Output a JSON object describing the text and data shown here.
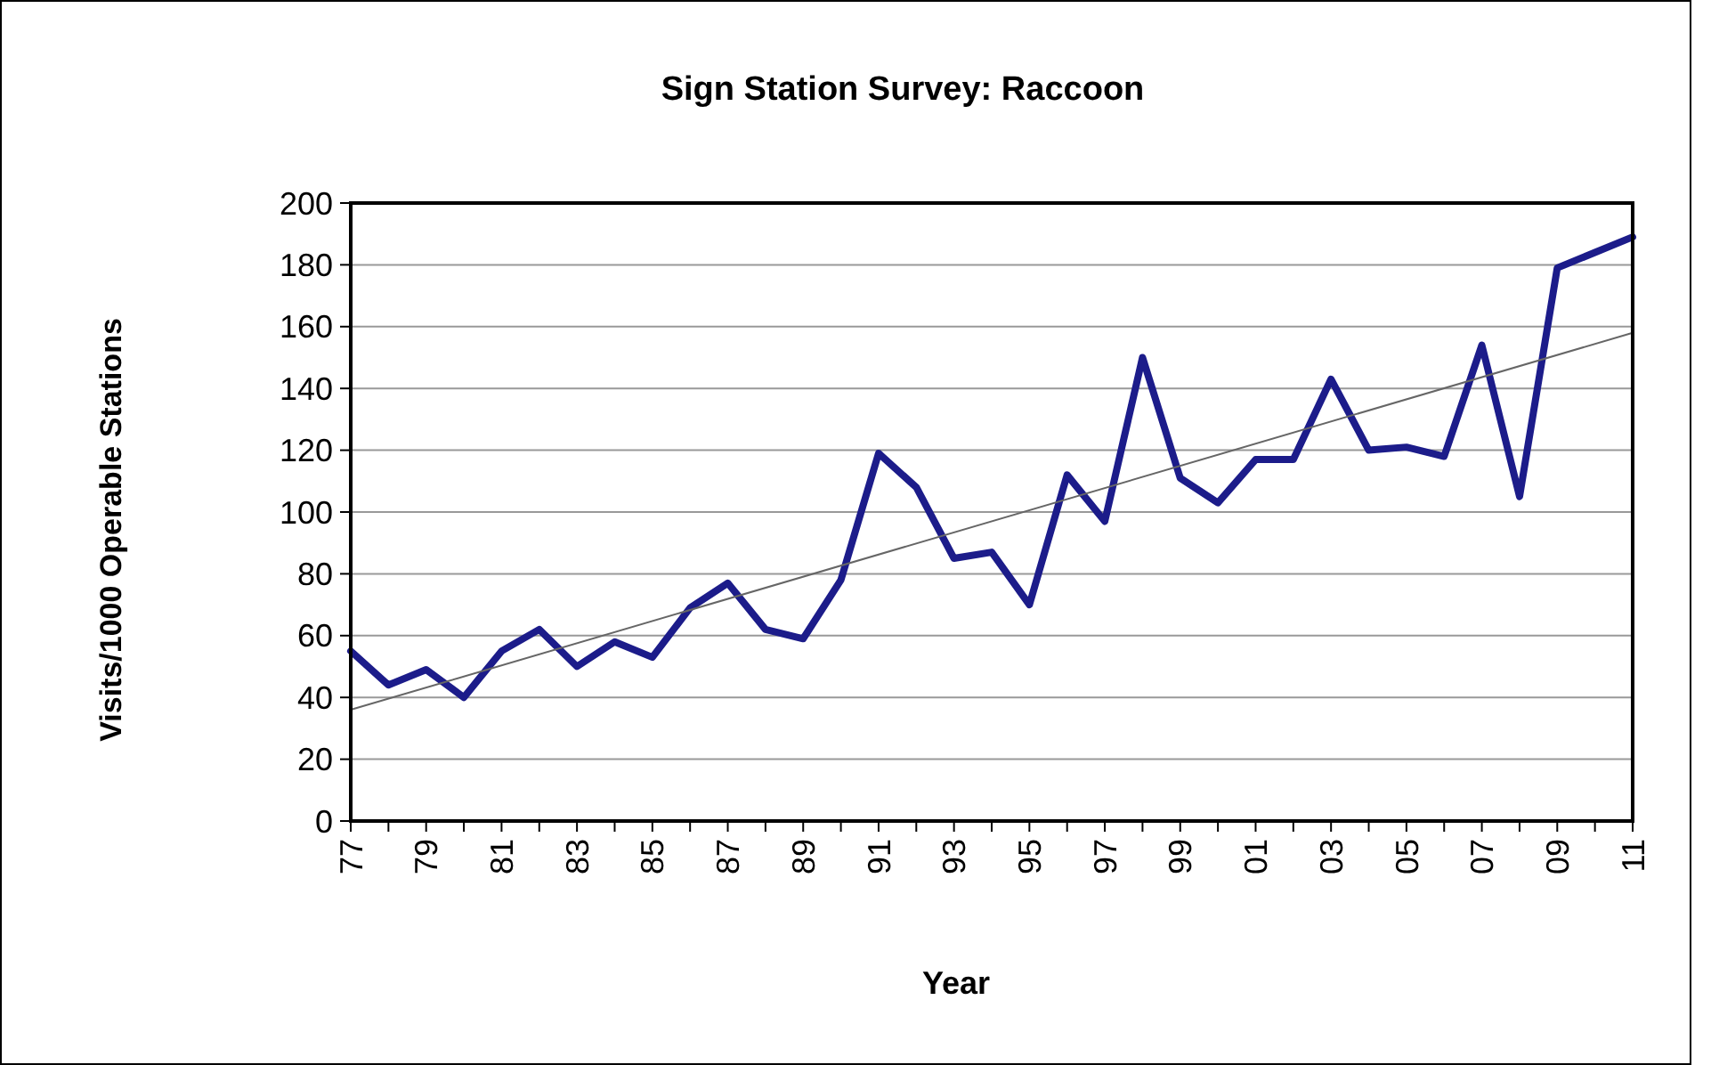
{
  "chart_data": {
    "type": "line",
    "title": "Sign Station Survey: Raccoon",
    "xlabel": "Year",
    "ylabel": "Visits/1000 Operable Stations",
    "categories": [
      "77",
      null,
      "79",
      null,
      "81",
      null,
      "83",
      null,
      "85",
      null,
      "87",
      null,
      "89",
      null,
      "91",
      null,
      "93",
      null,
      "95",
      null,
      "97",
      null,
      "99",
      null,
      "01",
      null,
      "03",
      null,
      "05",
      null,
      "07",
      null,
      "09",
      null,
      "11"
    ],
    "series": [
      {
        "color": "#1c1c8a",
        "values": [
          55,
          44,
          49,
          40,
          55,
          62,
          50,
          58,
          53,
          69,
          77,
          62,
          59,
          78,
          119,
          108,
          85,
          87,
          70,
          112,
          97,
          150,
          111,
          103,
          117,
          117,
          143,
          120,
          121,
          118,
          154,
          105,
          179,
          184,
          189
        ]
      },
      {
        "type": "line",
        "color": "#666666",
        "x": [
          "77",
          "11"
        ],
        "values": [
          36,
          158
        ]
      }
    ],
    "ylim": [
      0,
      200
    ],
    "yticks": [
      0,
      20,
      40,
      60,
      80,
      100,
      120,
      140,
      160,
      180,
      200
    ],
    "grid": "y",
    "marker": "none",
    "line_style": "solid"
  }
}
